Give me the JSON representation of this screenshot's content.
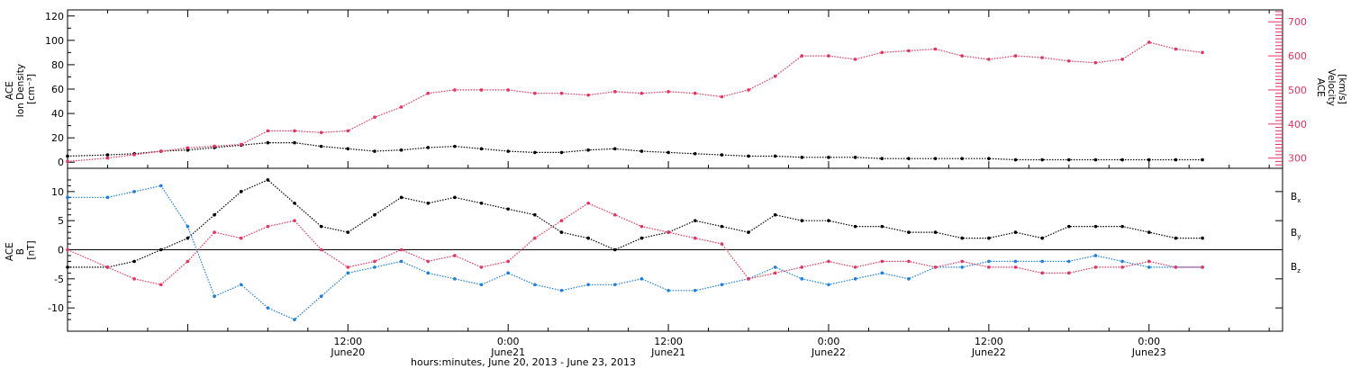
{
  "colors": {
    "black": "#000000",
    "red": "#e8315e",
    "blue": "#1a7fe0"
  },
  "xlabel": "hours:minutes, June 20, 2013 - June 23, 2013",
  "x_ticks": [
    {
      "time": "12:00",
      "date": "June20",
      "hours": 12
    },
    {
      "time": "0:00",
      "date": "June21",
      "hours": 24
    },
    {
      "time": "12:00",
      "date": "June21",
      "hours": 36
    },
    {
      "time": "0:00",
      "date": "June22",
      "hours": 48
    },
    {
      "time": "12:00",
      "date": "June22",
      "hours": 60
    },
    {
      "time": "0:00",
      "date": "June23",
      "hours": 72
    }
  ],
  "panel1": {
    "ylabel_lines": [
      "ACE",
      "Ion Density",
      "[cm⁻³]"
    ],
    "y2label_lines": [
      "ACE",
      "Velocity",
      "[km/s]"
    ]
  },
  "panel2": {
    "ylabel_lines": [
      "ACE",
      "B",
      "[nT]"
    ],
    "legend": [
      {
        "text": "B",
        "sub": "x",
        "color": "#000000"
      },
      {
        "text": "B",
        "sub": "y",
        "color": "#1a7fe0"
      },
      {
        "text": "B",
        "sub": "z",
        "color": "#e8315e"
      }
    ]
  },
  "chart_data": [
    {
      "type": "scatter",
      "title": "",
      "x_unit": "hours since 2013-06-20 00:00",
      "xlim": [
        -9.0,
        82.0
      ],
      "ylim": [
        -5,
        125
      ],
      "y_ticks": [
        0,
        20,
        40,
        60,
        80,
        100,
        120
      ],
      "y2lim": [
        270,
        735
      ],
      "y2_ticks": [
        300,
        400,
        500,
        600,
        700
      ],
      "series": [
        {
          "name": "Ion Density",
          "axis": "left",
          "color": "#000000",
          "x": [
            -9,
            -6,
            -4,
            -2,
            0,
            2,
            4,
            6,
            8,
            10,
            12,
            14,
            16,
            18,
            20,
            22,
            24,
            26,
            28,
            30,
            32,
            34,
            36,
            38,
            40,
            42,
            44,
            46,
            48,
            50,
            52,
            54,
            56,
            58,
            60,
            62,
            64,
            66,
            68,
            70,
            72,
            74,
            76
          ],
          "y": [
            5,
            6,
            7,
            9,
            10,
            12,
            14,
            16,
            16,
            13,
            11,
            9,
            10,
            12,
            13,
            11,
            9,
            8,
            8,
            10,
            11,
            9,
            8,
            7,
            6,
            5,
            5,
            4,
            4,
            4,
            3,
            3,
            3,
            3,
            3,
            2,
            2,
            2,
            2,
            2,
            2,
            2,
            2
          ]
        },
        {
          "name": "Velocity",
          "axis": "right",
          "color": "#e8315e",
          "x": [
            -9,
            -6,
            -4,
            -2,
            0,
            2,
            4,
            6,
            8,
            10,
            12,
            14,
            16,
            18,
            20,
            22,
            24,
            26,
            28,
            30,
            32,
            34,
            36,
            38,
            40,
            42,
            44,
            46,
            48,
            50,
            52,
            54,
            56,
            58,
            60,
            62,
            64,
            66,
            68,
            70,
            72,
            74,
            76
          ],
          "y": [
            290,
            300,
            310,
            320,
            330,
            335,
            340,
            380,
            380,
            375,
            380,
            420,
            450,
            490,
            500,
            500,
            500,
            490,
            490,
            485,
            495,
            490,
            495,
            490,
            480,
            500,
            540,
            600,
            600,
            590,
            610,
            615,
            620,
            600,
            590,
            600,
            595,
            585,
            580,
            590,
            640,
            620,
            610
          ]
        }
      ]
    },
    {
      "type": "scatter",
      "title": "",
      "x_unit": "hours since 2013-06-20 00:00",
      "xlim": [
        -9.0,
        82.0
      ],
      "ylim": [
        -14,
        14
      ],
      "y_ticks": [
        -10,
        -5,
        0,
        5,
        10
      ],
      "zero_line": true,
      "series": [
        {
          "name": "Bx",
          "color": "#000000",
          "x": [
            -9,
            -6,
            -4,
            -2,
            0,
            2,
            4,
            6,
            8,
            10,
            12,
            14,
            16,
            18,
            20,
            22,
            24,
            26,
            28,
            30,
            32,
            34,
            36,
            38,
            40,
            42,
            44,
            46,
            48,
            50,
            52,
            54,
            56,
            58,
            60,
            62,
            64,
            66,
            68,
            70,
            72,
            74,
            76
          ],
          "y": [
            -3,
            -3,
            -2,
            0,
            2,
            6,
            10,
            12,
            8,
            4,
            3,
            6,
            9,
            8,
            9,
            8,
            7,
            6,
            3,
            2,
            0,
            2,
            3,
            5,
            4,
            3,
            6,
            5,
            5,
            4,
            4,
            3,
            3,
            2,
            2,
            3,
            2,
            4,
            4,
            4,
            3,
            2,
            2
          ]
        },
        {
          "name": "By",
          "color": "#1a7fe0",
          "x": [
            -9,
            -6,
            -4,
            -2,
            0,
            2,
            4,
            6,
            8,
            10,
            12,
            14,
            16,
            18,
            20,
            22,
            24,
            26,
            28,
            30,
            32,
            34,
            36,
            38,
            40,
            42,
            44,
            46,
            48,
            50,
            52,
            54,
            56,
            58,
            60,
            62,
            64,
            66,
            68,
            70,
            72,
            74,
            76
          ],
          "y": [
            9,
            9,
            10,
            11,
            4,
            -8,
            -6,
            -10,
            -12,
            -8,
            -4,
            -3,
            -2,
            -4,
            -5,
            -6,
            -4,
            -6,
            -7,
            -6,
            -6,
            -5,
            -7,
            -7,
            -6,
            -5,
            -3,
            -5,
            -6,
            -5,
            -4,
            -5,
            -3,
            -3,
            -2,
            -2,
            -2,
            -2,
            -1,
            -2,
            -3,
            -3,
            -3
          ]
        },
        {
          "name": "Bz",
          "color": "#e8315e",
          "x": [
            -9,
            -6,
            -4,
            -2,
            0,
            2,
            4,
            6,
            8,
            10,
            12,
            14,
            16,
            18,
            20,
            22,
            24,
            26,
            28,
            30,
            32,
            34,
            36,
            38,
            40,
            42,
            44,
            46,
            48,
            50,
            52,
            54,
            56,
            58,
            60,
            62,
            64,
            66,
            68,
            70,
            72,
            74,
            76
          ],
          "y": [
            0,
            -3,
            -5,
            -6,
            -2,
            3,
            2,
            4,
            5,
            0,
            -3,
            -2,
            0,
            -2,
            -1,
            -3,
            -2,
            2,
            5,
            8,
            6,
            4,
            3,
            2,
            1,
            -5,
            -4,
            -3,
            -2,
            -3,
            -2,
            -2,
            -3,
            -2,
            -3,
            -3,
            -4,
            -4,
            -3,
            -3,
            -2,
            -3,
            -3
          ]
        }
      ]
    }
  ]
}
